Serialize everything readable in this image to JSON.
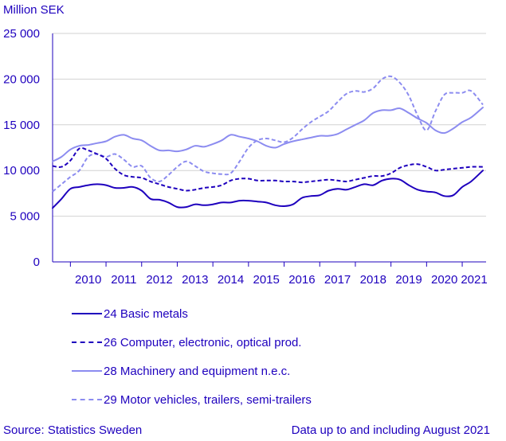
{
  "unit_label": "Million SEK",
  "source": "Source: Statistics Sweden",
  "note": "Data up to and including August 2021",
  "colors": {
    "text": "#1e00be",
    "axis": "#1e00be",
    "basic_metals": "#1e00be",
    "computer": "#1e00be",
    "machinery": "#8c8cf0",
    "motor": "#8c8cf0"
  },
  "chart_data": {
    "type": "line",
    "title": "",
    "xlabel": "",
    "ylabel": "Million SEK",
    "ylim": [
      0,
      25000
    ],
    "y_ticks": [
      0,
      5000,
      10000,
      15000,
      20000,
      25000
    ],
    "y_tick_labels": [
      "0",
      "5 000",
      "10 000",
      "15 000",
      "20 000",
      "25 000"
    ],
    "x_tick_labels": [
      "2010",
      "2011",
      "2012",
      "2013",
      "2014",
      "2015",
      "2016",
      "2017",
      "2018",
      "2019",
      "2020",
      "2021"
    ],
    "x_start": 2009.5,
    "x_end": 2021.67,
    "grid": true,
    "legend_position": "bottom",
    "series": [
      {
        "name": "24 Basic metals",
        "style": "solid",
        "x": [
          2009.5,
          2009.75,
          2010.0,
          2010.25,
          2010.5,
          2010.75,
          2011.0,
          2011.25,
          2011.5,
          2011.75,
          2012.0,
          2012.25,
          2012.5,
          2012.75,
          2013.0,
          2013.25,
          2013.5,
          2013.75,
          2014.0,
          2014.25,
          2014.5,
          2014.75,
          2015.0,
          2015.25,
          2015.5,
          2015.75,
          2016.0,
          2016.25,
          2016.5,
          2016.75,
          2017.0,
          2017.25,
          2017.5,
          2017.75,
          2018.0,
          2018.25,
          2018.5,
          2018.75,
          2019.0,
          2019.25,
          2019.5,
          2019.75,
          2020.0,
          2020.25,
          2020.5,
          2020.75,
          2021.0,
          2021.25,
          2021.58
        ],
        "y": [
          5900,
          6900,
          8000,
          8200,
          8400,
          8500,
          8400,
          8100,
          8100,
          8200,
          7800,
          6900,
          6800,
          6500,
          6000,
          6000,
          6300,
          6200,
          6300,
          6500,
          6500,
          6700,
          6700,
          6600,
          6500,
          6200,
          6100,
          6300,
          7000,
          7200,
          7300,
          7800,
          8000,
          7900,
          8200,
          8500,
          8400,
          8900,
          9100,
          9000,
          8400,
          7900,
          7700,
          7600,
          7200,
          7300,
          8200,
          8800,
          10000
        ]
      },
      {
        "name": "26 Computer, electronic, optical prod.",
        "style": "dashed",
        "x": [
          2009.5,
          2009.75,
          2010.0,
          2010.25,
          2010.5,
          2010.75,
          2011.0,
          2011.25,
          2011.5,
          2011.75,
          2012.0,
          2012.25,
          2012.5,
          2012.75,
          2013.0,
          2013.25,
          2013.5,
          2013.75,
          2014.0,
          2014.25,
          2014.5,
          2014.75,
          2015.0,
          2015.25,
          2015.5,
          2015.75,
          2016.0,
          2016.25,
          2016.5,
          2016.75,
          2017.0,
          2017.25,
          2017.5,
          2017.75,
          2018.0,
          2018.25,
          2018.5,
          2018.75,
          2019.0,
          2019.25,
          2019.5,
          2019.75,
          2020.0,
          2020.25,
          2020.5,
          2020.75,
          2021.0,
          2021.25,
          2021.58
        ],
        "y": [
          10500,
          10400,
          11100,
          12400,
          12200,
          11800,
          11300,
          10200,
          9500,
          9300,
          9200,
          8800,
          8500,
          8200,
          8000,
          7800,
          7900,
          8100,
          8200,
          8400,
          8900,
          9100,
          9100,
          8900,
          8900,
          8900,
          8800,
          8800,
          8700,
          8800,
          8900,
          9000,
          8900,
          8800,
          9000,
          9200,
          9400,
          9400,
          9700,
          10300,
          10600,
          10700,
          10400,
          10000,
          10100,
          10200,
          10300,
          10400,
          10400
        ]
      },
      {
        "name": "28 Machinery and equipment n.e.c.",
        "style": "solid",
        "x": [
          2009.5,
          2009.75,
          2010.0,
          2010.25,
          2010.5,
          2010.75,
          2011.0,
          2011.25,
          2011.5,
          2011.75,
          2012.0,
          2012.25,
          2012.5,
          2012.75,
          2013.0,
          2013.25,
          2013.5,
          2013.75,
          2014.0,
          2014.25,
          2014.5,
          2014.75,
          2015.0,
          2015.25,
          2015.5,
          2015.75,
          2016.0,
          2016.25,
          2016.5,
          2016.75,
          2017.0,
          2017.25,
          2017.5,
          2017.75,
          2018.0,
          2018.25,
          2018.5,
          2018.75,
          2019.0,
          2019.25,
          2019.5,
          2019.75,
          2020.0,
          2020.25,
          2020.5,
          2020.75,
          2021.0,
          2021.25,
          2021.58
        ],
        "y": [
          11000,
          11500,
          12300,
          12700,
          12800,
          13000,
          13200,
          13700,
          13900,
          13500,
          13300,
          12700,
          12200,
          12200,
          12100,
          12300,
          12700,
          12600,
          12900,
          13300,
          13900,
          13700,
          13500,
          13200,
          12700,
          12500,
          12900,
          13200,
          13400,
          13600,
          13800,
          13800,
          14000,
          14500,
          15000,
          15500,
          16300,
          16600,
          16600,
          16800,
          16300,
          15700,
          15200,
          14400,
          14100,
          14600,
          15300,
          15800,
          16900
        ]
      },
      {
        "name": "29 Motor vehicles, trailers, semi-trailers",
        "style": "dashed",
        "x": [
          2009.5,
          2009.75,
          2010.0,
          2010.25,
          2010.5,
          2010.75,
          2011.0,
          2011.25,
          2011.5,
          2011.75,
          2012.0,
          2012.25,
          2012.5,
          2012.75,
          2013.0,
          2013.25,
          2013.5,
          2013.75,
          2014.0,
          2014.25,
          2014.5,
          2014.75,
          2015.0,
          2015.25,
          2015.5,
          2015.75,
          2016.0,
          2016.25,
          2016.5,
          2016.75,
          2017.0,
          2017.25,
          2017.5,
          2017.75,
          2018.0,
          2018.25,
          2018.5,
          2018.75,
          2019.0,
          2019.25,
          2019.5,
          2019.75,
          2020.0,
          2020.25,
          2020.5,
          2020.75,
          2021.0,
          2021.25,
          2021.58
        ],
        "y": [
          7700,
          8500,
          9300,
          10000,
          11500,
          11800,
          11500,
          11800,
          11200,
          10400,
          10500,
          9200,
          8800,
          9500,
          10400,
          11000,
          10500,
          9900,
          9700,
          9600,
          9700,
          11000,
          12500,
          13300,
          13500,
          13300,
          13100,
          13600,
          14500,
          15300,
          15900,
          16500,
          17500,
          18400,
          18700,
          18600,
          19000,
          20000,
          20300,
          19600,
          18200,
          16000,
          14400,
          16500,
          18300,
          18500,
          18500,
          18700,
          17200
        ]
      }
    ]
  }
}
